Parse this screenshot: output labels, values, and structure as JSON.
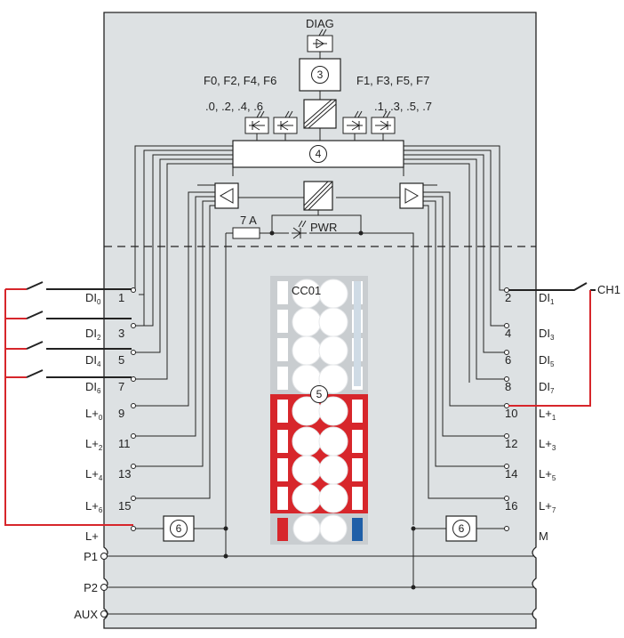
{
  "diag": "DIAG",
  "leds_left_title": "F0, F2, F4, F6",
  "leds_left_sub": ".0, .2, .4, .6",
  "leds_right_title": "F1, F3, F5, F7",
  "leds_right_sub": ".1, .3, .5, .7",
  "fuse": "7 A",
  "pwr": "PWR",
  "ch1": "CH1",
  "connector": "CC01",
  "callouts": {
    "c3": "3",
    "c4": "4",
    "c5": "5",
    "c6": "6"
  },
  "colors": {
    "panel": "#dde1e3",
    "wire": "#222222",
    "red": "#d7262b",
    "blue": "#1f5fa8",
    "connector_gray": "#c9cdd0"
  },
  "terminals_left": [
    {
      "num": "1",
      "name": "DI",
      "sub": "0"
    },
    {
      "num": "3",
      "name": "DI",
      "sub": "2"
    },
    {
      "num": "5",
      "name": "DI",
      "sub": "4"
    },
    {
      "num": "7",
      "name": "DI",
      "sub": "6"
    },
    {
      "num": "9",
      "name": "L+",
      "sub": "0"
    },
    {
      "num": "11",
      "name": "L+",
      "sub": "2"
    },
    {
      "num": "13",
      "name": "L+",
      "sub": "4"
    },
    {
      "num": "15",
      "name": "L+",
      "sub": "6"
    },
    {
      "num": "",
      "name": "L+",
      "sub": ""
    }
  ],
  "terminals_right": [
    {
      "num": "2",
      "name": "DI",
      "sub": "1"
    },
    {
      "num": "4",
      "name": "DI",
      "sub": "3"
    },
    {
      "num": "6",
      "name": "DI",
      "sub": "5"
    },
    {
      "num": "8",
      "name": "DI",
      "sub": "7"
    },
    {
      "num": "10",
      "name": "L+",
      "sub": "1"
    },
    {
      "num": "12",
      "name": "L+",
      "sub": "3"
    },
    {
      "num": "14",
      "name": "L+",
      "sub": "5"
    },
    {
      "num": "16",
      "name": "L+",
      "sub": "7"
    },
    {
      "num": "",
      "name": "M",
      "sub": ""
    }
  ],
  "bus": [
    "P1",
    "P2",
    "AUX"
  ]
}
